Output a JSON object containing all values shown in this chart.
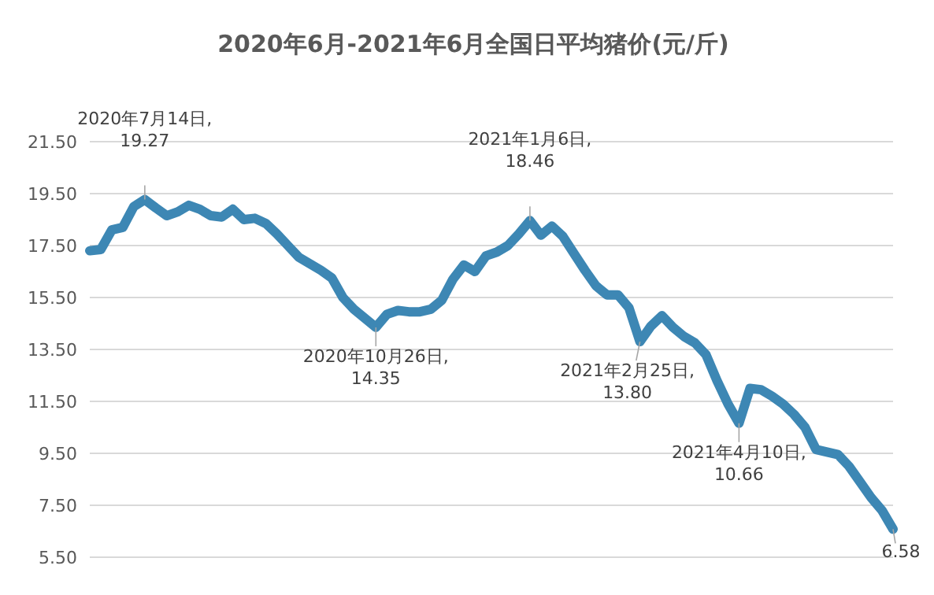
{
  "chart_data": {
    "type": "line",
    "color": "#3d87b4",
    "line_style": "solid",
    "title": "2020年6月-2021年6月全国日平均猪价(元/斤)",
    "grid": "y",
    "tick_labels": "y",
    "ylim": [
      5.5,
      21.5
    ],
    "yticks": [
      {
        "value": 5.5,
        "label": "5.50"
      },
      {
        "value": 7.5,
        "label": "7.50"
      },
      {
        "value": 9.5,
        "label": "9.50"
      },
      {
        "value": 11.5,
        "label": "11.50"
      },
      {
        "value": 13.5,
        "label": "13.50"
      },
      {
        "value": 15.5,
        "label": "15.50"
      },
      {
        "value": 17.5,
        "label": "17.50"
      },
      {
        "value": 19.5,
        "label": "19.50"
      },
      {
        "value": 21.5,
        "label": "21.50"
      }
    ],
    "categories": [
      null,
      null,
      null,
      null,
      null,
      null,
      null,
      null,
      null,
      null,
      null,
      null,
      null,
      null,
      null,
      null,
      null,
      null,
      null,
      null,
      null,
      null,
      null,
      null,
      null,
      null,
      null,
      null,
      null,
      null,
      null,
      null,
      null,
      null,
      null,
      null,
      null,
      null,
      null,
      null,
      null,
      null,
      null,
      null,
      null,
      null,
      null,
      null,
      null,
      null,
      null,
      null,
      null,
      null,
      null,
      null,
      null,
      null,
      null,
      null,
      null,
      null,
      null,
      null,
      null,
      null,
      null,
      null,
      null,
      null,
      null,
      null,
      null,
      null
    ],
    "values": [
      17.3,
      17.35,
      18.1,
      18.2,
      19.0,
      19.27,
      18.95,
      18.65,
      18.8,
      19.05,
      18.9,
      18.65,
      18.6,
      18.9,
      18.5,
      18.55,
      18.35,
      17.95,
      17.5,
      17.05,
      16.8,
      16.55,
      16.25,
      15.5,
      15.05,
      14.7,
      14.35,
      14.85,
      15.0,
      14.95,
      14.95,
      15.05,
      15.4,
      16.2,
      16.75,
      16.5,
      17.1,
      17.25,
      17.5,
      17.95,
      18.46,
      17.9,
      18.25,
      17.85,
      17.2,
      16.55,
      15.95,
      15.6,
      15.6,
      15.1,
      13.8,
      14.4,
      14.8,
      14.35,
      14.0,
      13.75,
      13.3,
      12.3,
      11.4,
      10.66,
      12.0,
      11.95,
      11.7,
      11.4,
      11.0,
      10.5,
      9.65,
      9.55,
      9.45,
      9.0,
      8.4,
      7.8,
      7.3,
      6.58
    ],
    "annotations": [
      {
        "text": "2020年7月14日,\n19.27",
        "y": 19.27
      },
      {
        "text": "2020年10月26日,\n14.35",
        "y": 14.35
      },
      {
        "text": "2021年1月6日,\n18.46",
        "y": 18.46
      },
      {
        "text": "2021年2月25日,\n13.80",
        "y": 13.8
      },
      {
        "text": "2021年4月10日,\n10.66",
        "y": 10.66
      },
      {
        "text": "6.58",
        "y": 6.58
      }
    ]
  }
}
